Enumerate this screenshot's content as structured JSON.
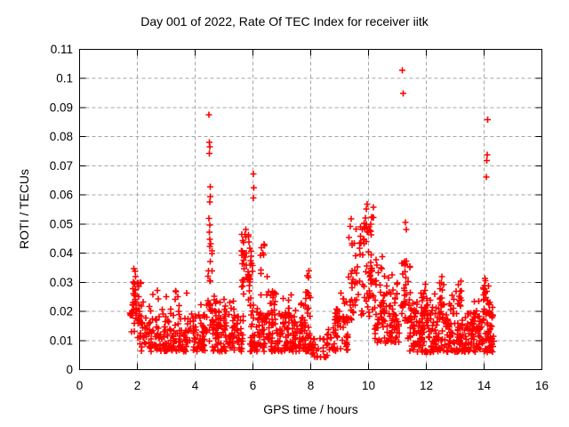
{
  "page": {
    "background": "#ffffff",
    "text_color": "#000000"
  },
  "chart_data": {
    "type": "scatter",
    "title": "Day 001 of 2022, Rate Of TEC Index for receiver iitk",
    "xlabel": "GPS time / hours",
    "ylabel": "ROTI / TECUs",
    "xlim": [
      0,
      16
    ],
    "ylim": [
      0,
      0.11
    ],
    "xticks": [
      0,
      2,
      4,
      6,
      8,
      10,
      12,
      14,
      16
    ],
    "xtick_labels": [
      "0",
      "2",
      "4",
      "6",
      "8",
      "10",
      "12",
      "14",
      "16"
    ],
    "yticks": [
      0,
      0.01,
      0.02,
      0.03,
      0.04,
      0.05,
      0.06,
      0.07,
      0.08,
      0.09,
      0.1,
      0.11
    ],
    "ytick_labels": [
      "0",
      "0.01",
      "0.02",
      "0.03",
      "0.04",
      "0.05",
      "0.06",
      "0.07",
      "0.08",
      "0.09",
      "0.1",
      "0.11"
    ],
    "grid": {
      "show": true,
      "color": "#a6a6a6",
      "style": "dashed"
    },
    "legend": null,
    "frame_color": "#000000",
    "series": [
      {
        "name": "ROTI",
        "marker": "plus",
        "color": "#ff0000",
        "outliers": [
          [
            4.47,
            0.0875
          ],
          [
            4.49,
            0.078
          ],
          [
            4.51,
            0.0765
          ],
          [
            4.49,
            0.0742
          ],
          [
            4.53,
            0.0628
          ],
          [
            4.52,
            0.0595
          ],
          [
            4.51,
            0.0576
          ],
          [
            4.48,
            0.052
          ],
          [
            4.5,
            0.0497
          ],
          [
            4.49,
            0.0472
          ],
          [
            4.51,
            0.0448
          ],
          [
            4.5,
            0.0423
          ],
          [
            4.52,
            0.0372
          ],
          [
            4.5,
            0.0305
          ],
          [
            5.75,
            0.0482
          ],
          [
            5.72,
            0.0465
          ],
          [
            6.02,
            0.0672
          ],
          [
            6.03,
            0.0625
          ],
          [
            6.02,
            0.0589
          ],
          [
            9.96,
            0.0568
          ],
          [
            9.93,
            0.0552
          ],
          [
            10.17,
            0.0557
          ],
          [
            11.17,
            0.1028
          ],
          [
            11.2,
            0.0948
          ],
          [
            11.28,
            0.0505
          ],
          [
            11.31,
            0.0482
          ],
          [
            14.13,
            0.0858
          ],
          [
            14.11,
            0.0738
          ],
          [
            14.09,
            0.0718
          ],
          [
            14.07,
            0.0662
          ],
          [
            14.05,
            0.0305
          ]
        ],
        "clusters": [
          {
            "x0": 1.72,
            "x1": 1.84,
            "y0": 0.012,
            "y1": 0.021,
            "n": 7,
            "bias": 1
          },
          {
            "x0": 1.83,
            "x1": 1.97,
            "y0": 0.013,
            "y1": 0.0352,
            "n": 30,
            "bias": 1.1
          },
          {
            "x0": 1.95,
            "x1": 2.18,
            "y0": 0.016,
            "y1": 0.0305,
            "n": 13,
            "bias": 1.2
          },
          {
            "x0": 2.0,
            "x1": 4.35,
            "y0": 0.0062,
            "y1": 0.0188,
            "n": 205,
            "bias": 1.35
          },
          {
            "x0": 2.0,
            "x1": 4.35,
            "y0": 0.0185,
            "y1": 0.0275,
            "n": 26,
            "bias": 1.45
          },
          {
            "x0": 4.35,
            "x1": 4.8,
            "y0": 0.0095,
            "y1": 0.026,
            "n": 28,
            "bias": 1.3
          },
          {
            "x0": 4.42,
            "x1": 4.6,
            "y0": 0.02,
            "y1": 0.047,
            "n": 12,
            "bias": 1.1
          },
          {
            "x0": 4.6,
            "x1": 5.68,
            "y0": 0.0062,
            "y1": 0.019,
            "n": 105,
            "bias": 1.35
          },
          {
            "x0": 4.8,
            "x1": 5.4,
            "y0": 0.018,
            "y1": 0.0255,
            "n": 12,
            "bias": 1.2
          },
          {
            "x0": 5.6,
            "x1": 5.95,
            "y0": 0.026,
            "y1": 0.0465,
            "n": 40,
            "bias": 1.15
          },
          {
            "x0": 5.82,
            "x1": 6.02,
            "y0": 0.0195,
            "y1": 0.042,
            "n": 14,
            "bias": 1
          },
          {
            "x0": 5.9,
            "x1": 8.02,
            "y0": 0.0062,
            "y1": 0.0195,
            "n": 225,
            "bias": 1.35
          },
          {
            "x0": 6.0,
            "x1": 8.0,
            "y0": 0.0192,
            "y1": 0.0268,
            "n": 26,
            "bias": 1.4
          },
          {
            "x0": 6.25,
            "x1": 6.5,
            "y0": 0.031,
            "y1": 0.0452,
            "n": 9,
            "bias": 1
          },
          {
            "x0": 6.52,
            "x1": 6.78,
            "y0": 0.019,
            "y1": 0.0282,
            "n": 8,
            "bias": 1.2
          },
          {
            "x0": 7.82,
            "x1": 8.0,
            "y0": 0.0235,
            "y1": 0.0352,
            "n": 9,
            "bias": 1
          },
          {
            "x0": 8.02,
            "x1": 8.6,
            "y0": 0.0042,
            "y1": 0.0108,
            "n": 26,
            "bias": 1.1
          },
          {
            "x0": 8.55,
            "x1": 9.28,
            "y0": 0.006,
            "y1": 0.0195,
            "n": 55,
            "bias": 1.25
          },
          {
            "x0": 8.85,
            "x1": 9.3,
            "y0": 0.016,
            "y1": 0.0272,
            "n": 16,
            "bias": 1.2
          },
          {
            "x0": 9.3,
            "x1": 9.62,
            "y0": 0.028,
            "y1": 0.0532,
            "n": 20,
            "bias": 1.1
          },
          {
            "x0": 9.28,
            "x1": 9.65,
            "y0": 0.0165,
            "y1": 0.029,
            "n": 14,
            "bias": 1
          },
          {
            "x0": 9.68,
            "x1": 10.18,
            "y0": 0.029,
            "y1": 0.0528,
            "n": 46,
            "bias": 1.05
          },
          {
            "x0": 9.7,
            "x1": 10.2,
            "y0": 0.0175,
            "y1": 0.03,
            "n": 18,
            "bias": 1
          },
          {
            "x0": 10.2,
            "x1": 10.62,
            "y0": 0.0185,
            "y1": 0.0398,
            "n": 30,
            "bias": 1.2
          },
          {
            "x0": 10.2,
            "x1": 11.08,
            "y0": 0.0092,
            "y1": 0.0198,
            "n": 55,
            "bias": 1.2
          },
          {
            "x0": 10.62,
            "x1": 11.08,
            "y0": 0.0125,
            "y1": 0.0328,
            "n": 26,
            "bias": 1.3
          },
          {
            "x0": 11.08,
            "x1": 11.45,
            "y0": 0.0165,
            "y1": 0.0378,
            "n": 38,
            "bias": 1.25
          },
          {
            "x0": 11.35,
            "x1": 14.32,
            "y0": 0.006,
            "y1": 0.0195,
            "n": 320,
            "bias": 1.4
          },
          {
            "x0": 11.4,
            "x1": 14.3,
            "y0": 0.0192,
            "y1": 0.0262,
            "n": 40,
            "bias": 1.35
          },
          {
            "x0": 11.7,
            "x1": 12.05,
            "y0": 0.0195,
            "y1": 0.0308,
            "n": 16,
            "bias": 1.1
          },
          {
            "x0": 12.42,
            "x1": 12.62,
            "y0": 0.021,
            "y1": 0.0335,
            "n": 12,
            "bias": 1
          },
          {
            "x0": 13.02,
            "x1": 13.26,
            "y0": 0.021,
            "y1": 0.0312,
            "n": 11,
            "bias": 1
          },
          {
            "x0": 13.96,
            "x1": 14.22,
            "y0": 0.0185,
            "y1": 0.0318,
            "n": 18,
            "bias": 1
          },
          {
            "x0": 14.02,
            "x1": 14.34,
            "y0": 0.0055,
            "y1": 0.0125,
            "n": 16,
            "bias": 1
          }
        ]
      }
    ]
  }
}
